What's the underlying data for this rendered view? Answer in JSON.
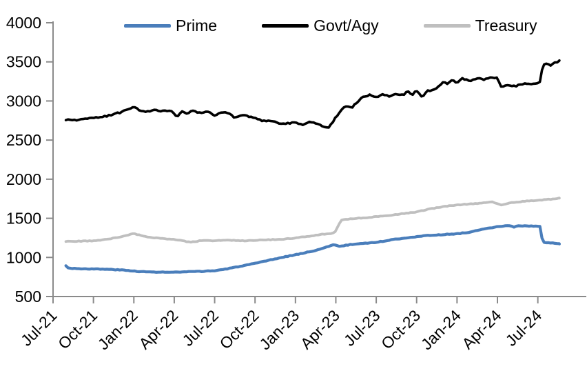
{
  "chart_data": {
    "type": "line",
    "title": "",
    "xlabel": "",
    "ylabel": "",
    "grid": false,
    "axis_color": "#8a8a8a",
    "text_color": "#000000",
    "y_axis": {
      "ticks": [
        500,
        1000,
        1500,
        2000,
        2500,
        3000,
        3500,
        4000
      ],
      "range": [
        500,
        4000
      ]
    },
    "x_axis": {
      "ticks": [
        "Jul-21",
        "Oct-21",
        "Jan-22",
        "Apr-22",
        "Jul-22",
        "Oct-22",
        "Jan-23",
        "Apr-23",
        "Jul-23",
        "Oct-23",
        "Jan-24",
        "Apr-24",
        "Jul-24"
      ],
      "tick_months": [
        0,
        3,
        6,
        9,
        12,
        15,
        18,
        21,
        24,
        27,
        30,
        33,
        36
      ],
      "range_months": [
        0,
        39.6
      ]
    },
    "legend": {
      "position": "top",
      "items": [
        "Prime",
        "Govt/Agy",
        "Treasury"
      ]
    },
    "series": [
      {
        "name": "Prime",
        "color": "#4a7ebb",
        "points": [
          [
            0.95,
            892
          ],
          [
            1.15,
            865
          ],
          [
            1.6,
            858
          ],
          [
            2,
            856
          ],
          [
            3,
            852
          ],
          [
            4,
            848
          ],
          [
            5,
            840
          ],
          [
            6,
            826
          ],
          [
            7,
            814
          ],
          [
            8,
            812
          ],
          [
            9,
            810
          ],
          [
            10,
            816
          ],
          [
            11,
            822
          ],
          [
            12,
            830
          ],
          [
            13,
            856
          ],
          [
            14,
            890
          ],
          [
            15,
            922
          ],
          [
            16,
            962
          ],
          [
            17,
            1000
          ],
          [
            18,
            1035
          ],
          [
            19,
            1070
          ],
          [
            20,
            1112
          ],
          [
            20.8,
            1165
          ],
          [
            21.3,
            1140
          ],
          [
            22,
            1162
          ],
          [
            23,
            1180
          ],
          [
            24,
            1192
          ],
          [
            25,
            1222
          ],
          [
            26,
            1246
          ],
          [
            27,
            1266
          ],
          [
            28,
            1282
          ],
          [
            29,
            1292
          ],
          [
            30,
            1302
          ],
          [
            31,
            1325
          ],
          [
            32,
            1362
          ],
          [
            33,
            1392
          ],
          [
            33.8,
            1410
          ],
          [
            34.2,
            1388
          ],
          [
            34.6,
            1405
          ],
          [
            35.3,
            1400
          ],
          [
            36.2,
            1398
          ],
          [
            36.35,
            1190
          ],
          [
            37,
            1186
          ],
          [
            37.6,
            1172
          ]
        ]
      },
      {
        "name": "Govt/Agy",
        "color": "#000000",
        "points": [
          [
            0.95,
            2755
          ],
          [
            2,
            2760
          ],
          [
            3,
            2782
          ],
          [
            4,
            2805
          ],
          [
            5,
            2855
          ],
          [
            6,
            2928
          ],
          [
            6.4,
            2880
          ],
          [
            7,
            2862
          ],
          [
            7.6,
            2895
          ],
          [
            8,
            2870
          ],
          [
            8.8,
            2878
          ],
          [
            9.2,
            2795
          ],
          [
            9.6,
            2870
          ],
          [
            10,
            2835
          ],
          [
            10.4,
            2880
          ],
          [
            11,
            2840
          ],
          [
            11.5,
            2868
          ],
          [
            12,
            2812
          ],
          [
            12.5,
            2858
          ],
          [
            13,
            2840
          ],
          [
            13.5,
            2790
          ],
          [
            14,
            2825
          ],
          [
            15,
            2780
          ],
          [
            15.5,
            2752
          ],
          [
            16,
            2742
          ],
          [
            17,
            2712
          ],
          [
            18,
            2722
          ],
          [
            18.5,
            2692
          ],
          [
            19,
            2732
          ],
          [
            19.5,
            2712
          ],
          [
            20,
            2680
          ],
          [
            20.5,
            2662
          ],
          [
            21,
            2795
          ],
          [
            21.5,
            2898
          ],
          [
            21.8,
            2938
          ],
          [
            22.2,
            2920
          ],
          [
            22.6,
            2985
          ],
          [
            23,
            3052
          ],
          [
            23.5,
            3075
          ],
          [
            24,
            3048
          ],
          [
            24.5,
            3080
          ],
          [
            25,
            3062
          ],
          [
            25.5,
            3085
          ],
          [
            26,
            3080
          ],
          [
            26.3,
            3120
          ],
          [
            26.7,
            3085
          ],
          [
            27,
            3135
          ],
          [
            27.4,
            3050
          ],
          [
            27.8,
            3140
          ],
          [
            28,
            3120
          ],
          [
            28.5,
            3165
          ],
          [
            29,
            3255
          ],
          [
            29.3,
            3215
          ],
          [
            29.7,
            3270
          ],
          [
            30,
            3225
          ],
          [
            30.4,
            3285
          ],
          [
            31,
            3255
          ],
          [
            31.5,
            3290
          ],
          [
            32,
            3270
          ],
          [
            32.5,
            3305
          ],
          [
            33,
            3290
          ],
          [
            33.3,
            3172
          ],
          [
            33.8,
            3210
          ],
          [
            34.3,
            3190
          ],
          [
            35,
            3225
          ],
          [
            35.6,
            3218
          ],
          [
            36.2,
            3238
          ],
          [
            36.35,
            3455
          ],
          [
            36.6,
            3478
          ],
          [
            36.9,
            3455
          ],
          [
            37.2,
            3480
          ],
          [
            37.6,
            3518
          ]
        ]
      },
      {
        "name": "Treasury",
        "color": "#bfbfbf",
        "points": [
          [
            0.95,
            1205
          ],
          [
            2,
            1207
          ],
          [
            3,
            1212
          ],
          [
            4,
            1232
          ],
          [
            5,
            1262
          ],
          [
            6,
            1303
          ],
          [
            6.5,
            1282
          ],
          [
            7,
            1262
          ],
          [
            8,
            1243
          ],
          [
            9,
            1230
          ],
          [
            10,
            1200
          ],
          [
            10.3,
            1196
          ],
          [
            11,
            1215
          ],
          [
            12,
            1214
          ],
          [
            13,
            1220
          ],
          [
            14,
            1212
          ],
          [
            15,
            1220
          ],
          [
            16,
            1226
          ],
          [
            17,
            1232
          ],
          [
            18,
            1248
          ],
          [
            19,
            1272
          ],
          [
            20,
            1295
          ],
          [
            20.9,
            1312
          ],
          [
            21.4,
            1478
          ],
          [
            22,
            1492
          ],
          [
            23,
            1505
          ],
          [
            24,
            1520
          ],
          [
            25,
            1537
          ],
          [
            26,
            1560
          ],
          [
            27,
            1582
          ],
          [
            28,
            1620
          ],
          [
            29,
            1650
          ],
          [
            30,
            1672
          ],
          [
            31,
            1682
          ],
          [
            32,
            1700
          ],
          [
            32.6,
            1712
          ],
          [
            33.3,
            1668
          ],
          [
            34,
            1700
          ],
          [
            35,
            1718
          ],
          [
            36,
            1730
          ],
          [
            37,
            1745
          ],
          [
            37.6,
            1758
          ]
        ]
      }
    ]
  }
}
